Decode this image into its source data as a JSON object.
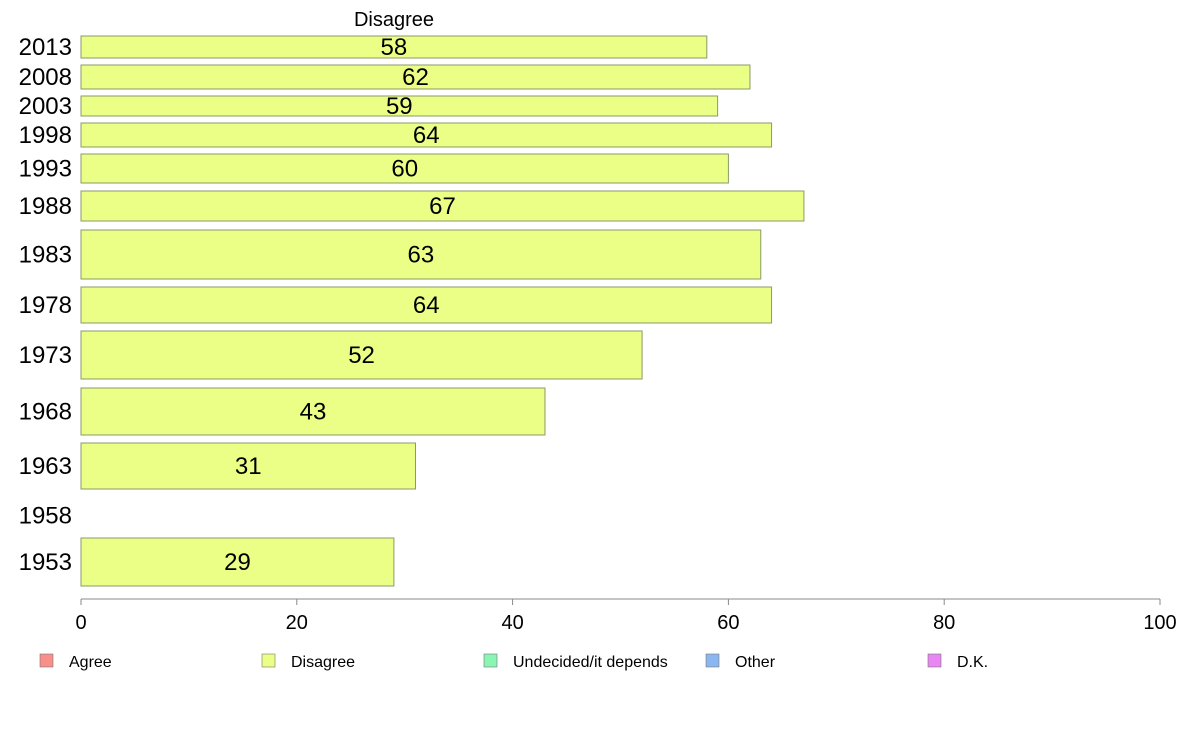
{
  "chart_data": {
    "type": "bar",
    "orientation": "horizontal",
    "series_header": "Disagree",
    "categories": [
      "2013",
      "2008",
      "2003",
      "1998",
      "1993",
      "1988",
      "1983",
      "1978",
      "1973",
      "1968",
      "1963",
      "1958",
      "1953"
    ],
    "series": [
      {
        "name": "Disagree",
        "color": "#ebff87",
        "values": [
          58,
          62,
          59,
          64,
          60,
          67,
          63,
          64,
          52,
          43,
          31,
          null,
          29
        ]
      }
    ],
    "xlim": [
      0,
      100
    ],
    "xticks": [
      0,
      20,
      40,
      60,
      80,
      100
    ],
    "grid": false,
    "legend_position": "bottom",
    "legend": [
      {
        "label": "Agree",
        "color": "#f88f8a"
      },
      {
        "label": "Disagree",
        "color": "#ebff87"
      },
      {
        "label": "Undecided/it depends",
        "color": "#8bf5b4"
      },
      {
        "label": "Other",
        "color": "#8cb6ef"
      },
      {
        "label": "D.K.",
        "color": "#e986f3"
      }
    ]
  }
}
